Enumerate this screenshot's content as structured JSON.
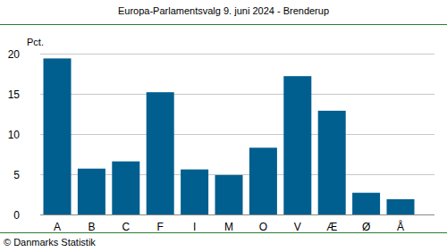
{
  "chart_data": {
    "type": "bar",
    "title": "Europa-Parlamentsvalg 9. juni 2024 - Brenderup",
    "y_label": "Pct.",
    "source": "© Danmarks Statistik",
    "categories": [
      "A",
      "B",
      "C",
      "F",
      "I",
      "M",
      "O",
      "V",
      "Æ",
      "Ø",
      "Å"
    ],
    "values": [
      19.4,
      5.7,
      6.6,
      15.2,
      5.6,
      4.9,
      8.3,
      17.2,
      12.9,
      2.7,
      1.9
    ],
    "color": "#005f8f",
    "ylim": [
      0,
      20
    ],
    "yticks": [
      0,
      5,
      10,
      15,
      20
    ],
    "grid": true
  }
}
